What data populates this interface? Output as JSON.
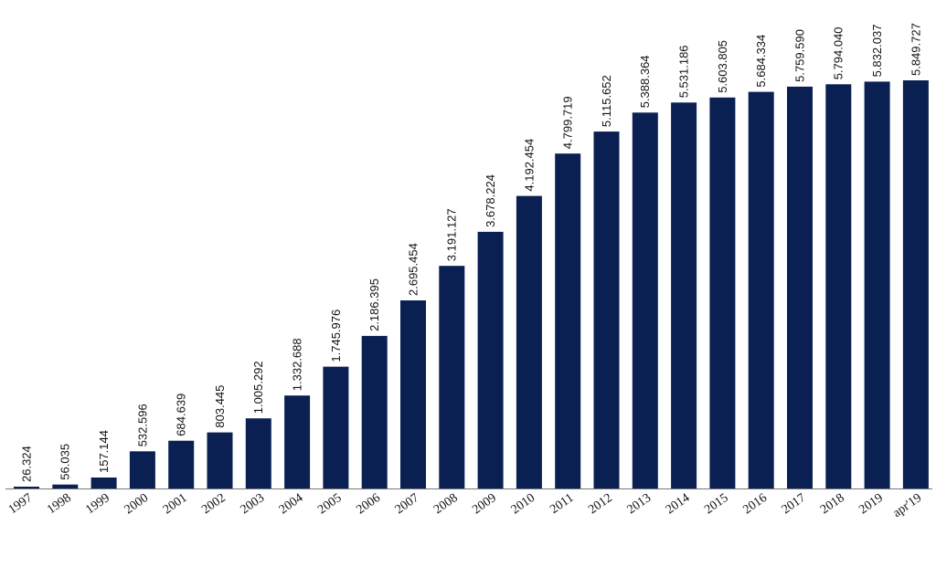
{
  "chart_data": {
    "type": "bar",
    "categories": [
      "1997",
      "1998",
      "1999",
      "2000",
      "2001",
      "2002",
      "2003",
      "2004",
      "2005",
      "2006",
      "2007",
      "2008",
      "2009",
      "2010",
      "2011",
      "2012",
      "2013",
      "2014",
      "2015",
      "2016",
      "2017",
      "2018",
      "2019",
      "apr'19"
    ],
    "values": [
      26324,
      56035,
      157144,
      532596,
      684639,
      803445,
      1005292,
      1332688,
      1745976,
      2186395,
      2695454,
      3191127,
      3678224,
      4192454,
      4799719,
      5115652,
      5388364,
      5531186,
      5603805,
      5684334,
      5759590,
      5794040,
      5832037,
      5849727
    ],
    "value_labels": [
      "26.324",
      "56.035",
      "157.144",
      "532.596",
      "684.639",
      "803.445",
      "1.005.292",
      "1.332.688",
      "1.745.976",
      "2.186.395",
      "2.695.454",
      "3.191.127",
      "3.678.224",
      "4.192.454",
      "4.799.719",
      "5.115.652",
      "5.388.364",
      "5.531.186",
      "5.603.805",
      "5.684.334",
      "5.759.590",
      "5.794.040",
      "5.832.037",
      "5.849.727"
    ],
    "title": "",
    "xlabel": "",
    "ylabel": "",
    "ylim": [
      0,
      5849727
    ],
    "grid": false,
    "legend": "none",
    "bar_color": "#0a2052",
    "axis_color": "#777777"
  }
}
